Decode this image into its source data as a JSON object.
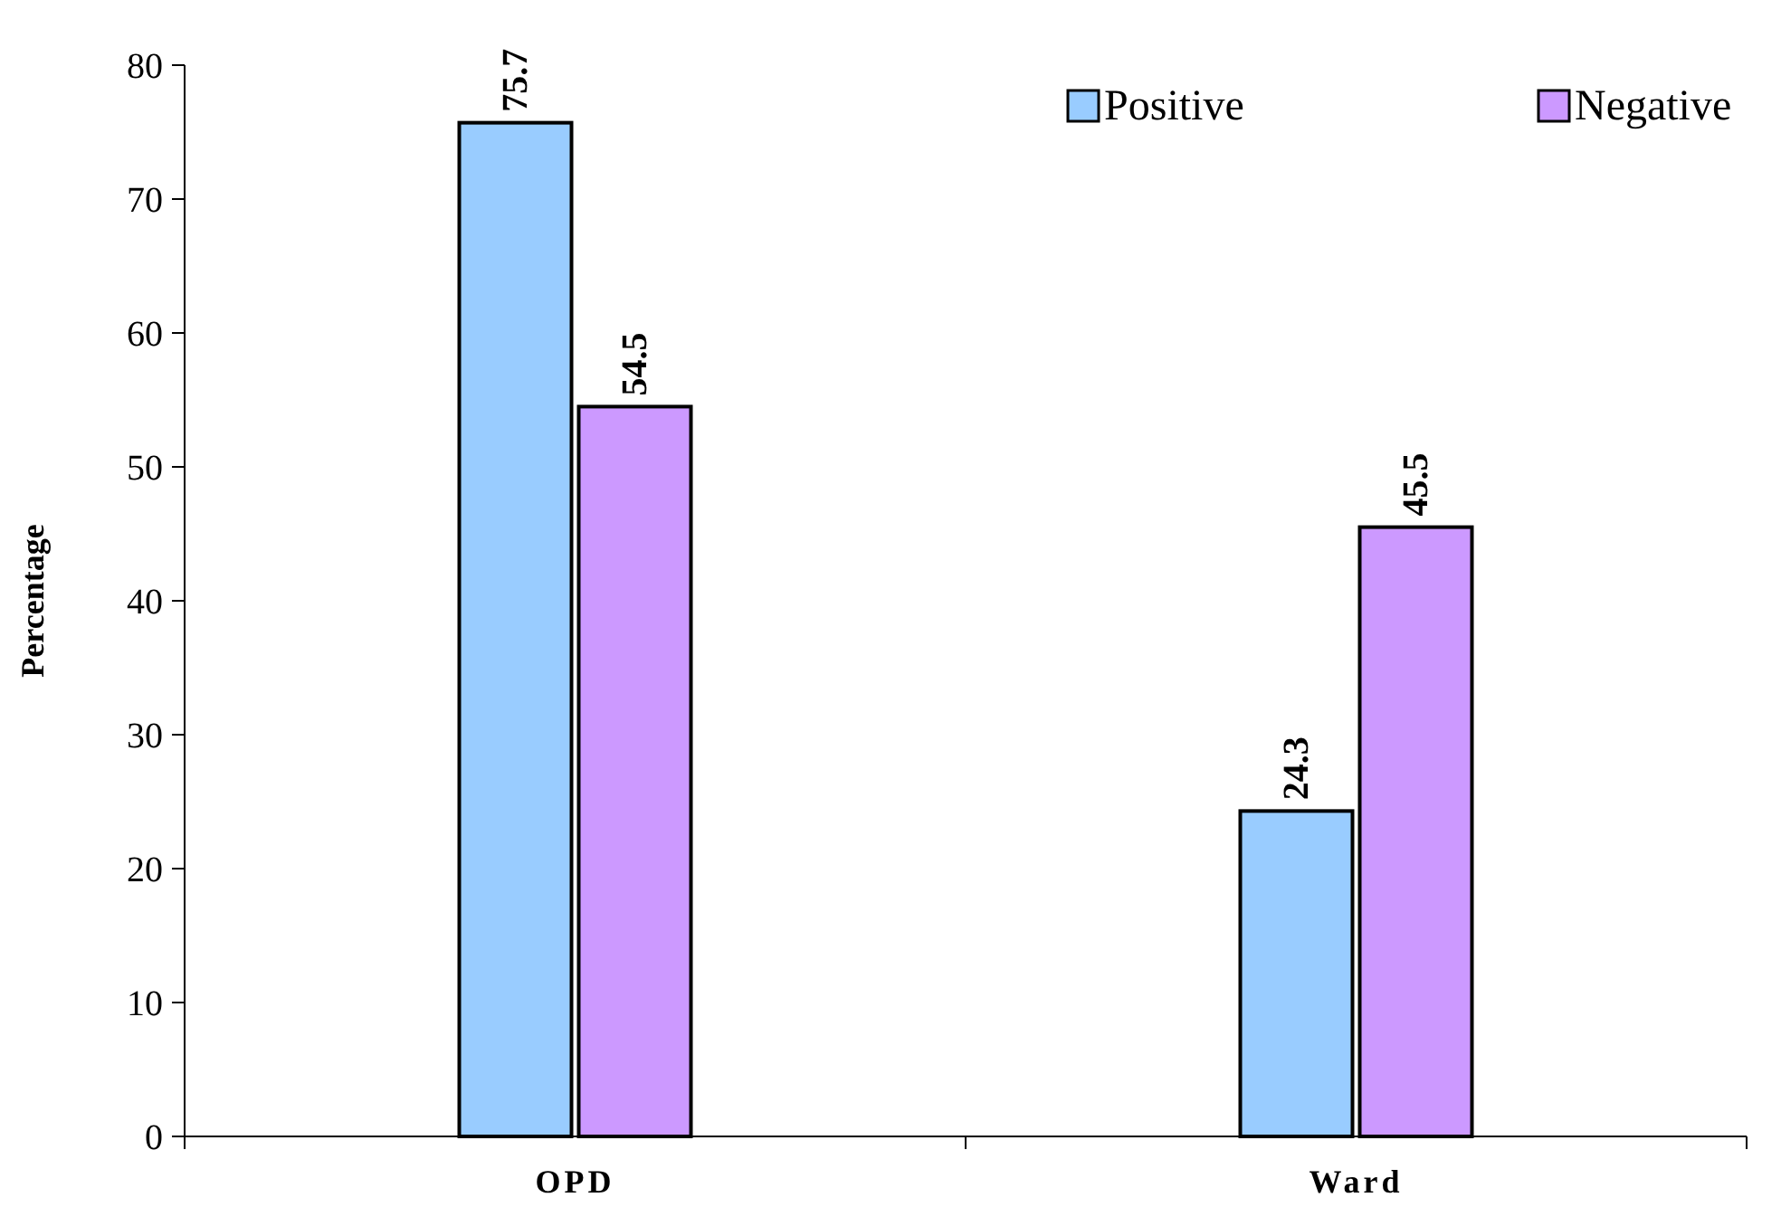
{
  "chart_data": {
    "type": "bar",
    "ylabel": "Percentage",
    "categories": [
      "OPD",
      "Ward"
    ],
    "series": [
      {
        "name": "Positive",
        "color": "#99ccff",
        "values": [
          75.7,
          24.3
        ]
      },
      {
        "name": "Negative",
        "color": "#cc99ff",
        "values": [
          54.5,
          45.5
        ]
      }
    ],
    "ylim": [
      0,
      80
    ],
    "yticks": [
      0,
      10,
      20,
      30,
      40,
      50,
      60,
      70,
      80
    ],
    "data_labels": true,
    "legend": "top right",
    "grid": false
  }
}
